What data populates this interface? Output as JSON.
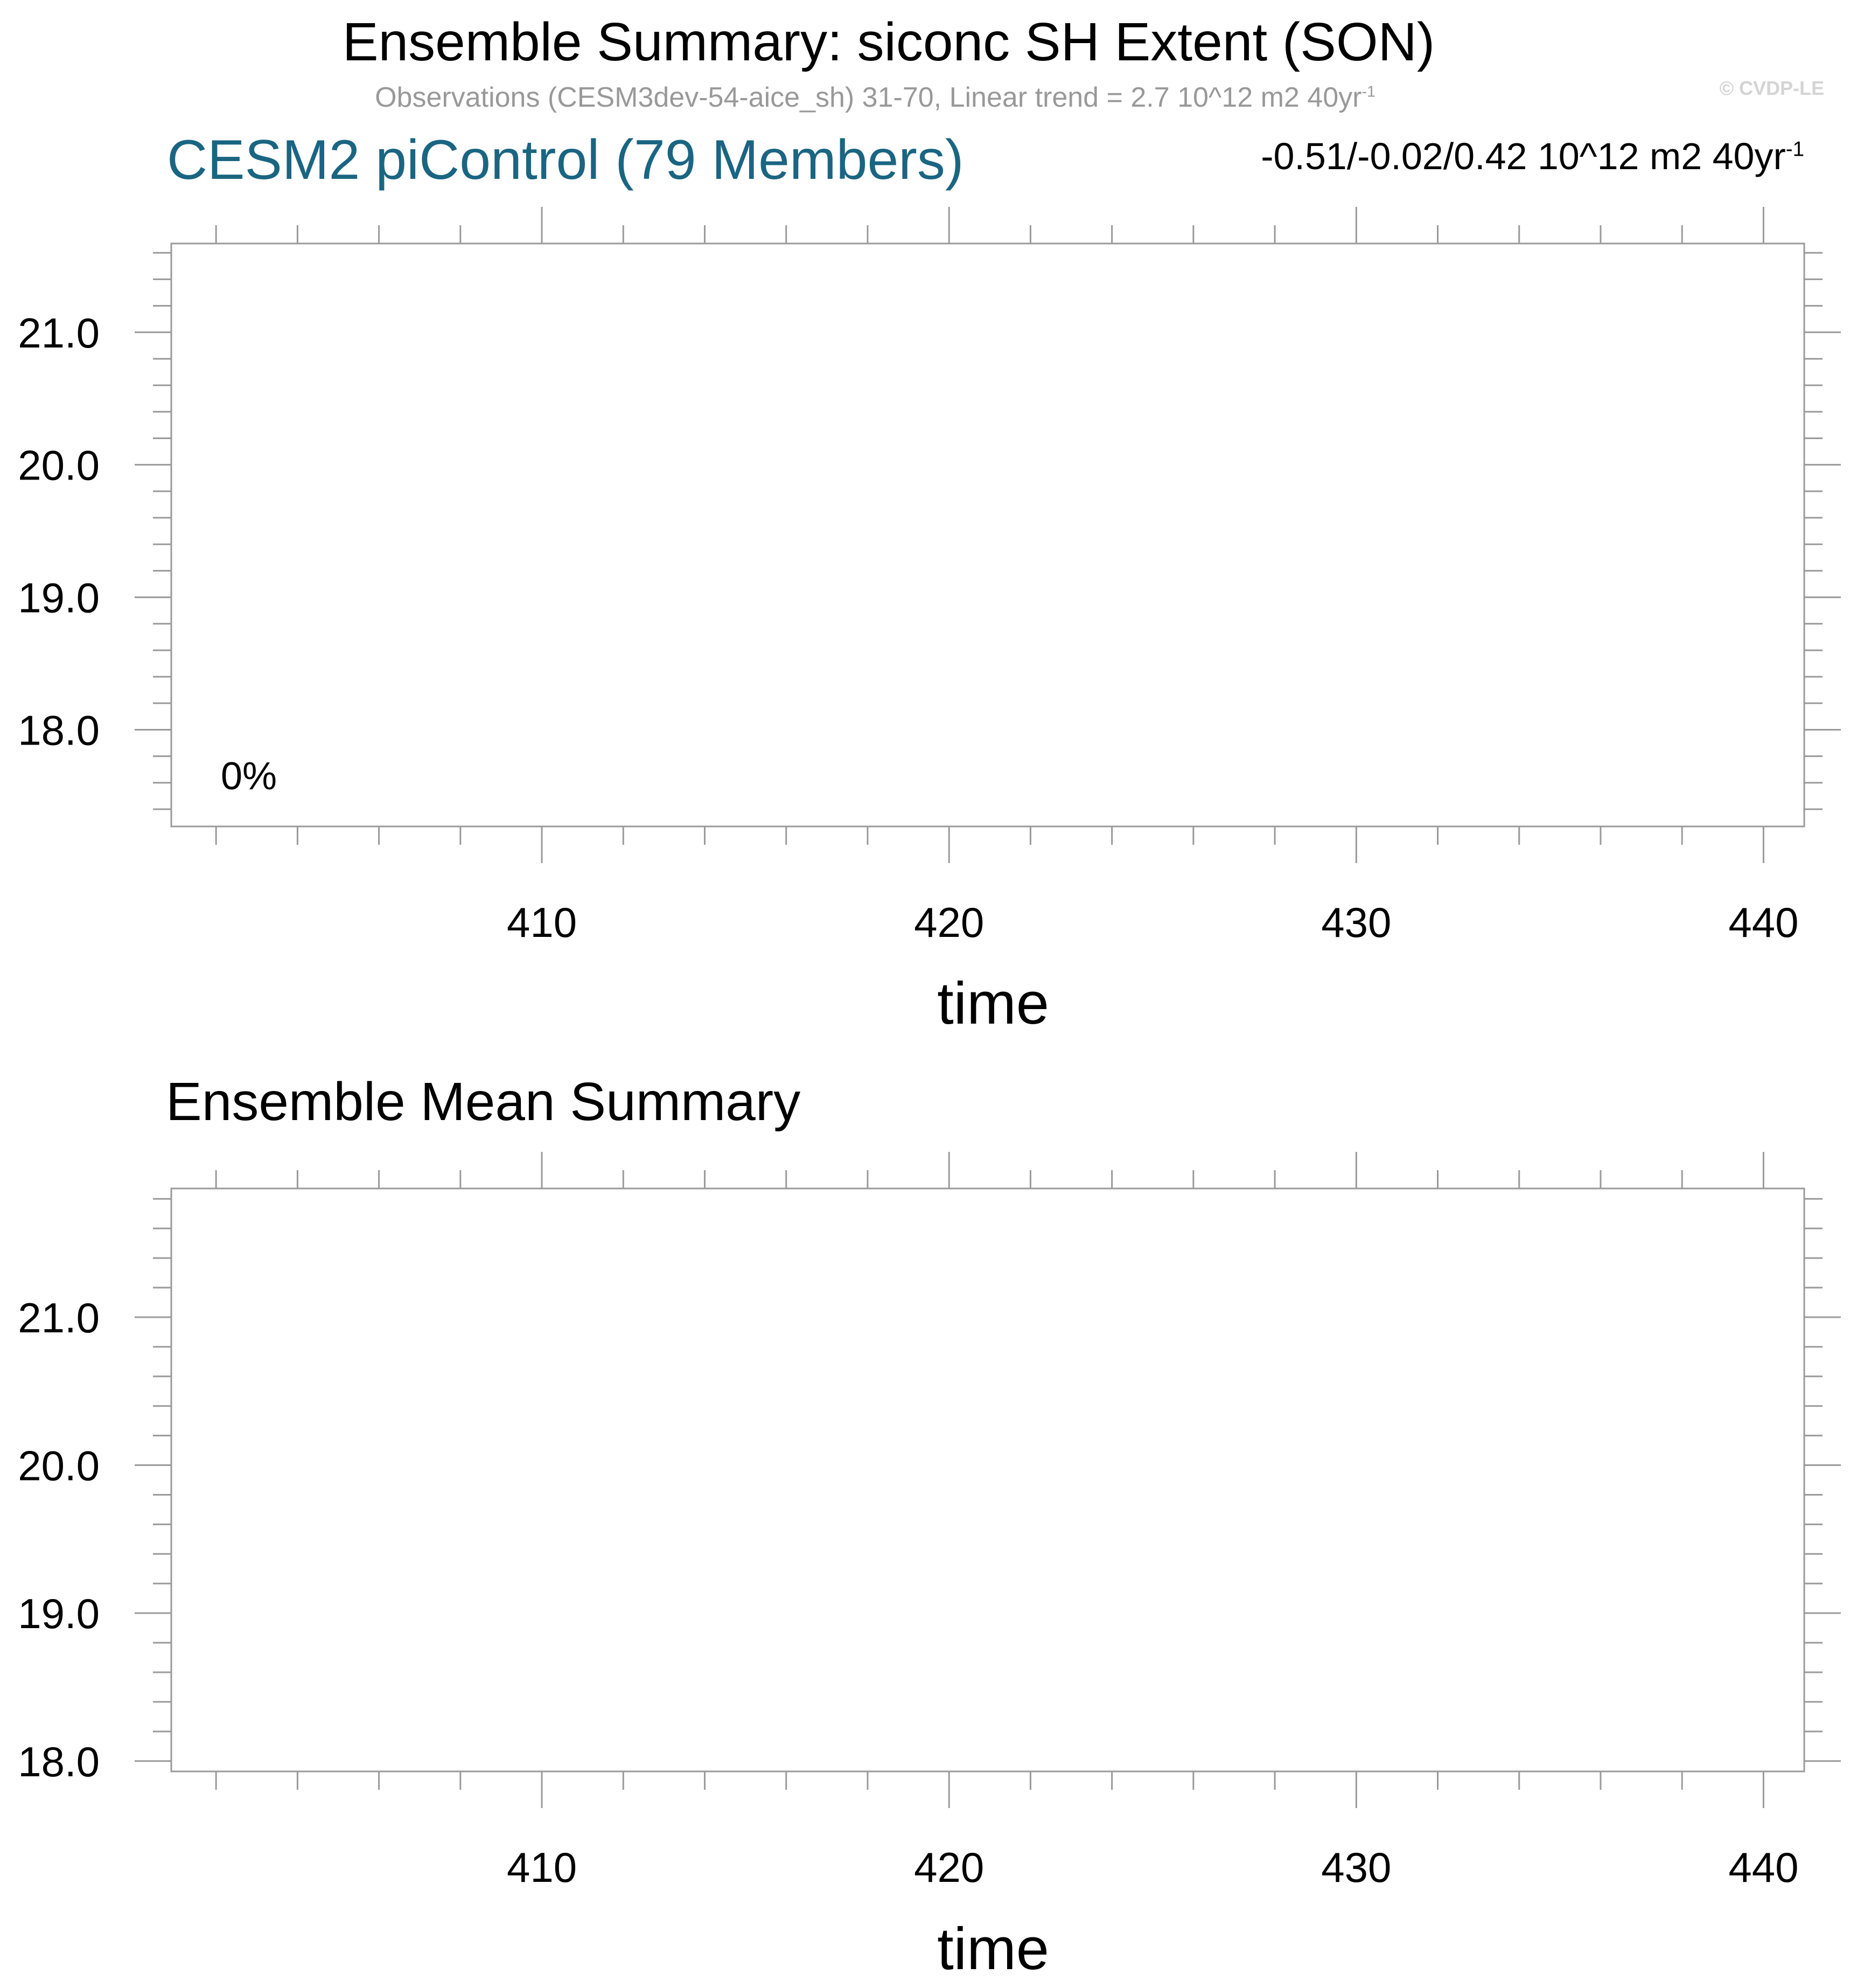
{
  "header": {
    "title": "Ensemble Summary: siconc SH Extent (SON)",
    "subtitle_main": "Observations (CESM3dev-54-aice_sh) 31-70, Linear trend = 2.7 10^12 m2 40yr",
    "subtitle_exp": "-1",
    "watermark": "© CVDP-LE"
  },
  "panel_top": {
    "title": "CESM2 piControl (79 Members)",
    "title_color": "#1a6582",
    "stats_main": "-0.51/-0.02/0.42 10^12 m2 40yr",
    "stats_exp": "-1",
    "annotation": "0%"
  },
  "panel_bottom": {
    "title": "Ensemble Mean Summary"
  },
  "chart_data": [
    {
      "type": "line",
      "title": "CESM2 piControl (79 Members)",
      "xlabel": "time",
      "ylabel": "",
      "xlim": [
        400.9,
        441
      ],
      "ylim": [
        17.27,
        21.67
      ],
      "x_ticks": [
        410,
        420,
        430,
        440
      ],
      "x_tick_labels": [
        "410",
        "420",
        "430",
        "440"
      ],
      "y_ticks": [
        18.0,
        19.0,
        20.0,
        21.0
      ],
      "y_tick_labels": [
        "18.0",
        "19.0",
        "20.0",
        "21.0"
      ],
      "series": [],
      "annotations": [
        "0%"
      ]
    },
    {
      "type": "line",
      "title": "Ensemble Mean Summary",
      "xlabel": "time",
      "ylabel": "",
      "xlim": [
        400.9,
        441
      ],
      "ylim": [
        17.93,
        21.87
      ],
      "x_ticks": [
        410,
        420,
        430,
        440
      ],
      "x_tick_labels": [
        "410",
        "420",
        "430",
        "440"
      ],
      "y_ticks": [
        18.0,
        19.0,
        20.0,
        21.0
      ],
      "y_tick_labels": [
        "18.0",
        "19.0",
        "20.0",
        "21.0"
      ],
      "series": []
    }
  ]
}
